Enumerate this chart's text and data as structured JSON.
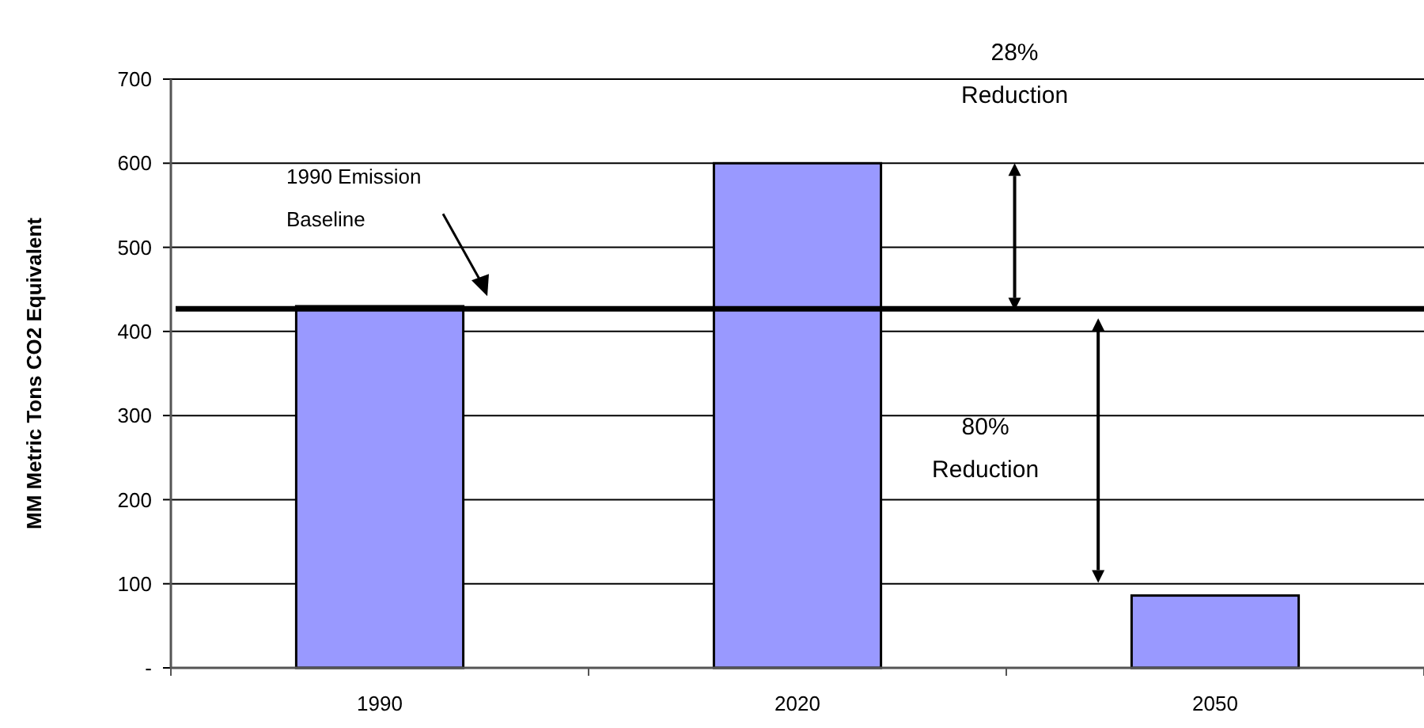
{
  "chart_data": {
    "type": "bar",
    "ylabel": "MM Metric Tons CO2 Equivalent",
    "categories": [
      "1990",
      "2020",
      "2050"
    ],
    "values": [
      430,
      600,
      86
    ],
    "color": "#9999ff",
    "ylim": [
      0,
      700
    ],
    "yticks": [
      {
        "value": 0,
        "label": "-"
      },
      100,
      200,
      300,
      400,
      500,
      600,
      700
    ],
    "grid": "y",
    "ref_lines": [
      {
        "axis": "y",
        "value": 427,
        "label": "1990 Emission Baseline",
        "color": "#000000"
      }
    ],
    "annotations": [
      "28% Reduction",
      "80% Reduction"
    ]
  }
}
